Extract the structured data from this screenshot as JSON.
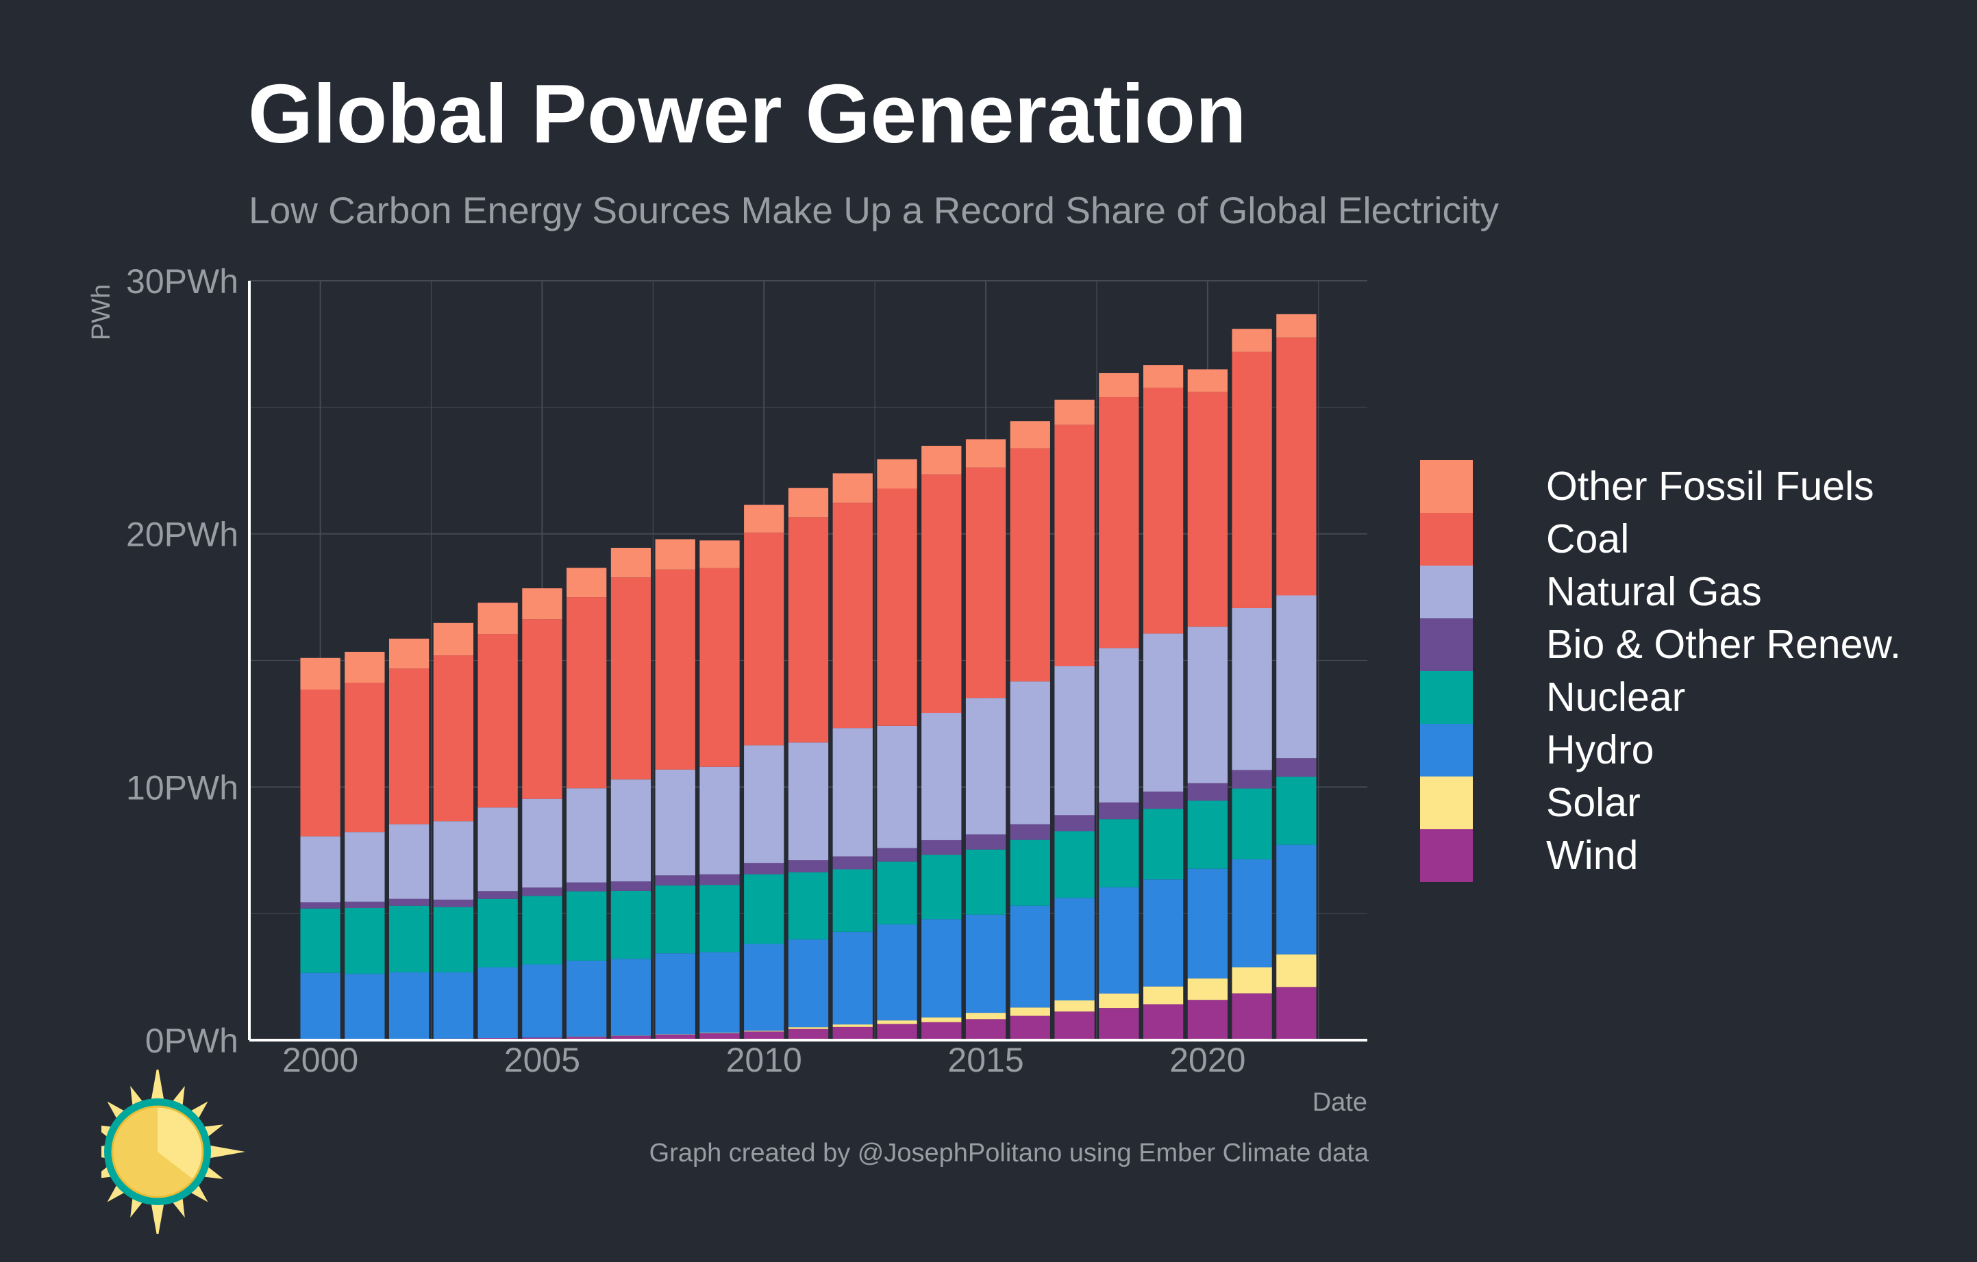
{
  "header": {
    "title": "Global Power Generation",
    "subtitle": "Low Carbon Energy Sources Make Up a Record Share of Global Electricity"
  },
  "footer": {
    "credit": "Graph created by @JosephPolitano using Ember Climate data"
  },
  "chart_data": {
    "type": "bar",
    "stacked": true,
    "title": "Global Power Generation",
    "subtitle": "Low Carbon Energy Sources Make Up a Record Share of Global Electricity",
    "xlabel": "Date",
    "ylabel": "PWh",
    "ylim": [
      0,
      30
    ],
    "yticks": [
      0,
      10,
      20,
      30
    ],
    "ytick_labels": [
      "0PWh",
      "10PWh",
      "20PWh",
      "30PWh"
    ],
    "xticks": [
      2000,
      2005,
      2010,
      2015,
      2020
    ],
    "xtick_labels": [
      "2000",
      "2005",
      "2010",
      "2015",
      "2020"
    ],
    "xlim": [
      1998.4,
      2023.6
    ],
    "grid": true,
    "legend_position": "right",
    "categories": [
      2000,
      2001,
      2002,
      2003,
      2004,
      2005,
      2006,
      2007,
      2008,
      2009,
      2010,
      2011,
      2012,
      2013,
      2014,
      2015,
      2016,
      2017,
      2018,
      2019,
      2020,
      2021,
      2022
    ],
    "series": [
      {
        "name": "Wind",
        "color": "#9a348e",
        "values": [
          0.03,
          0.04,
          0.05,
          0.06,
          0.08,
          0.1,
          0.13,
          0.17,
          0.22,
          0.27,
          0.34,
          0.44,
          0.52,
          0.64,
          0.71,
          0.83,
          0.96,
          1.13,
          1.27,
          1.42,
          1.59,
          1.85,
          2.1
        ]
      },
      {
        "name": "Solar",
        "color": "#fde68a",
        "values": [
          0.0,
          0.0,
          0.0,
          0.0,
          0.0,
          0.0,
          0.01,
          0.01,
          0.01,
          0.02,
          0.03,
          0.07,
          0.1,
          0.14,
          0.19,
          0.25,
          0.33,
          0.44,
          0.57,
          0.7,
          0.85,
          1.03,
          1.29
        ]
      },
      {
        "name": "Hydro",
        "color": "#2f86df",
        "values": [
          2.63,
          2.58,
          2.63,
          2.62,
          2.8,
          2.89,
          3.0,
          3.03,
          3.2,
          3.19,
          3.43,
          3.47,
          3.66,
          3.79,
          3.88,
          3.88,
          4.02,
          4.05,
          4.2,
          4.23,
          4.33,
          4.26,
          4.33
        ]
      },
      {
        "name": "Nuclear",
        "color": "#00a79d",
        "values": [
          2.54,
          2.6,
          2.63,
          2.58,
          2.7,
          2.71,
          2.74,
          2.69,
          2.68,
          2.65,
          2.75,
          2.65,
          2.47,
          2.48,
          2.54,
          2.57,
          2.6,
          2.63,
          2.69,
          2.79,
          2.69,
          2.8,
          2.68
        ]
      },
      {
        "name": "Bio & Other Renew.",
        "color": "#6a4c93",
        "values": [
          0.25,
          0.25,
          0.27,
          0.29,
          0.31,
          0.33,
          0.35,
          0.37,
          0.4,
          0.42,
          0.45,
          0.48,
          0.51,
          0.54,
          0.58,
          0.6,
          0.62,
          0.64,
          0.66,
          0.68,
          0.69,
          0.73,
          0.74
        ]
      },
      {
        "name": "Natural Gas",
        "color": "#a8aedb",
        "values": [
          2.6,
          2.75,
          2.95,
          3.1,
          3.3,
          3.5,
          3.72,
          4.03,
          4.18,
          4.25,
          4.65,
          4.65,
          5.07,
          4.83,
          5.03,
          5.39,
          5.64,
          5.88,
          6.1,
          6.24,
          6.18,
          6.4,
          6.43
        ]
      },
      {
        "name": "Coal",
        "color": "#ee6154",
        "values": [
          5.8,
          5.9,
          6.15,
          6.55,
          6.85,
          7.1,
          7.55,
          7.98,
          7.9,
          7.85,
          8.4,
          8.9,
          8.9,
          9.37,
          9.42,
          9.1,
          9.21,
          9.54,
          9.91,
          9.71,
          9.28,
          10.12,
          10.19
        ]
      },
      {
        "name": "Other Fossil Fuels",
        "color": "#fb8d6f",
        "values": [
          1.25,
          1.22,
          1.18,
          1.28,
          1.24,
          1.22,
          1.16,
          1.17,
          1.2,
          1.09,
          1.1,
          1.15,
          1.16,
          1.16,
          1.13,
          1.12,
          1.07,
          0.99,
          0.95,
          0.9,
          0.89,
          0.91,
          0.92
        ]
      }
    ]
  },
  "legend": {
    "items": [
      {
        "label": "Other Fossil Fuels",
        "color": "#fb8d6f"
      },
      {
        "label": "Coal",
        "color": "#ee6154"
      },
      {
        "label": "Natural Gas",
        "color": "#a8aedb"
      },
      {
        "label": "Bio & Other Renew.",
        "color": "#6a4c93"
      },
      {
        "label": "Nuclear",
        "color": "#00a79d"
      },
      {
        "label": "Hydro",
        "color": "#2f86df"
      },
      {
        "label": "Solar",
        "color": "#fde68a"
      },
      {
        "label": "Wind",
        "color": "#9a348e"
      }
    ]
  },
  "colors": {
    "background": "#252a33",
    "title": "#ffffff",
    "muted_text": "#9a9ca3",
    "grid": "#454a53",
    "axis": "#ffffff"
  },
  "logo": {
    "icon": "sun-icon"
  }
}
